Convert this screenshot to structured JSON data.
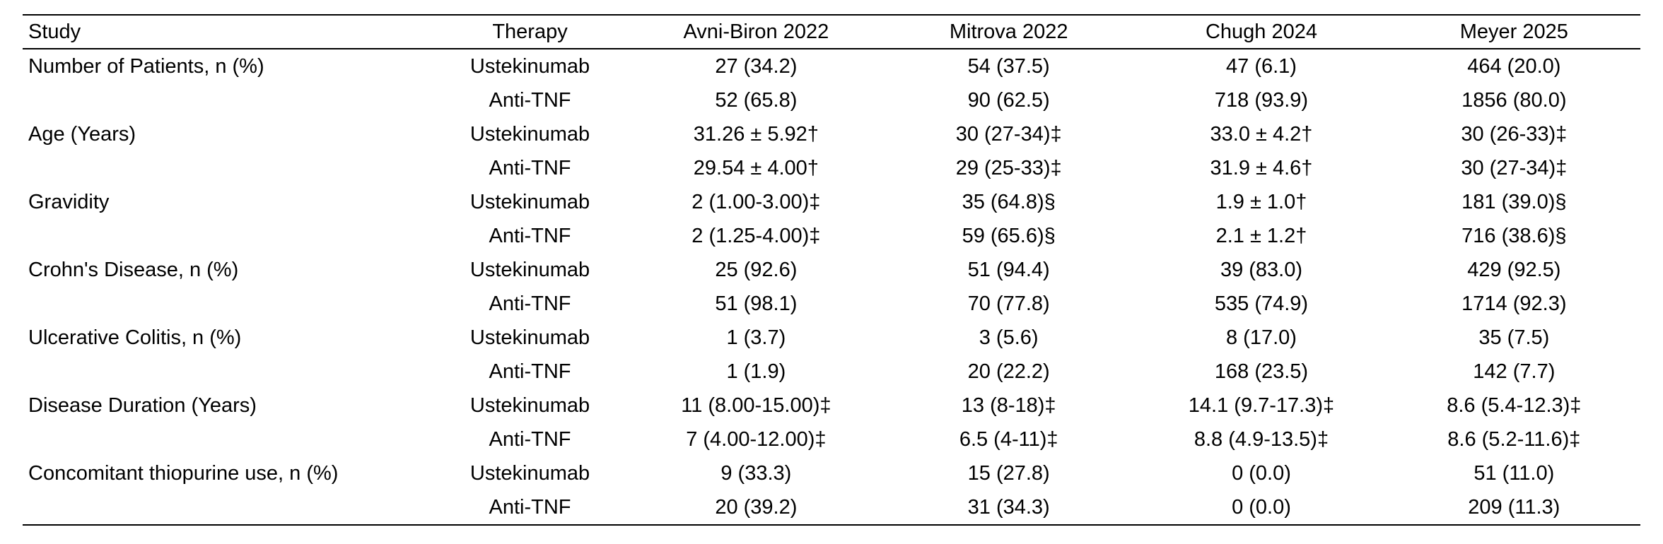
{
  "table": {
    "headers": [
      "Study",
      "Therapy",
      "Avni-Biron 2022",
      "Mitrova 2022",
      "Chugh 2024",
      "Meyer 2025"
    ],
    "rows": [
      {
        "variable": "Number of Patients, n (%)",
        "therapy": "Ustekinumab",
        "values": [
          "27 (34.2)",
          "54 (37.5)",
          "47 (6.1)",
          "464 (20.0)"
        ]
      },
      {
        "variable": "",
        "therapy": "Anti-TNF",
        "values": [
          "52 (65.8)",
          "90 (62.5)",
          "718 (93.9)",
          "1856 (80.0)"
        ]
      },
      {
        "variable": "Age (Years)",
        "therapy": "Ustekinumab",
        "values": [
          "31.26 ± 5.92†",
          "30 (27-34)‡",
          "33.0 ± 4.2†",
          "30 (26-33)‡"
        ]
      },
      {
        "variable": "",
        "therapy": "Anti-TNF",
        "values": [
          "29.54 ± 4.00†",
          "29 (25-33)‡",
          "31.9 ± 4.6†",
          "30 (27-34)‡"
        ]
      },
      {
        "variable": "Gravidity",
        "therapy": "Ustekinumab",
        "values": [
          "2 (1.00-3.00)‡",
          "35 (64.8)§",
          "1.9 ± 1.0†",
          "181 (39.0)§"
        ]
      },
      {
        "variable": "",
        "therapy": "Anti-TNF",
        "values": [
          "2 (1.25-4.00)‡",
          "59 (65.6)§",
          "2.1 ± 1.2†",
          "716 (38.6)§"
        ]
      },
      {
        "variable": "Crohn's Disease, n (%)",
        "therapy": "Ustekinumab",
        "values": [
          "25 (92.6)",
          "51 (94.4)",
          "39 (83.0)",
          "429 (92.5)"
        ]
      },
      {
        "variable": "",
        "therapy": "Anti-TNF",
        "values": [
          "51 (98.1)",
          "70 (77.8)",
          "535 (74.9)",
          "1714 (92.3)"
        ]
      },
      {
        "variable": "Ulcerative Colitis, n (%)",
        "therapy": "Ustekinumab",
        "values": [
          "1 (3.7)",
          "3 (5.6)",
          "8 (17.0)",
          "35 (7.5)"
        ]
      },
      {
        "variable": "",
        "therapy": "Anti-TNF",
        "values": [
          "1 (1.9)",
          "20 (22.2)",
          "168 (23.5)",
          "142 (7.7)"
        ]
      },
      {
        "variable": "Disease Duration (Years)",
        "therapy": "Ustekinumab",
        "values": [
          "11 (8.00-15.00)‡",
          "13 (8-18)‡",
          "14.1 (9.7-17.3)‡",
          "8.6 (5.4-12.3)‡"
        ]
      },
      {
        "variable": "",
        "therapy": "Anti-TNF",
        "values": [
          "7 (4.00-12.00)‡",
          "6.5 (4-11)‡",
          "8.8 (4.9-13.5)‡",
          "8.6 (5.2-11.6)‡"
        ]
      },
      {
        "variable": "Concomitant thiopurine use, n (%)",
        "therapy": "Ustekinumab",
        "values": [
          "9 (33.3)",
          "15 (27.8)",
          "0 (0.0)",
          "51 (11.0)"
        ]
      },
      {
        "variable": "",
        "therapy": "Anti-TNF",
        "values": [
          "20 (39.2)",
          "31 (34.3)",
          "0 (0.0)",
          "209 (11.3)"
        ]
      }
    ]
  },
  "chart_data": {
    "type": "table",
    "columns": [
      "Study",
      "Therapy",
      "Avni-Biron 2022",
      "Mitrova 2022",
      "Chugh 2024",
      "Meyer 2025"
    ],
    "rows": [
      [
        "Number of Patients, n (%)",
        "Ustekinumab",
        "27 (34.2)",
        "54 (37.5)",
        "47 (6.1)",
        "464 (20.0)"
      ],
      [
        "",
        "Anti-TNF",
        "52 (65.8)",
        "90 (62.5)",
        "718 (93.9)",
        "1856 (80.0)"
      ],
      [
        "Age (Years)",
        "Ustekinumab",
        "31.26 ± 5.92†",
        "30 (27-34)‡",
        "33.0 ± 4.2†",
        "30 (26-33)‡"
      ],
      [
        "",
        "Anti-TNF",
        "29.54 ± 4.00†",
        "29 (25-33)‡",
        "31.9 ± 4.6†",
        "30 (27-34)‡"
      ],
      [
        "Gravidity",
        "Ustekinumab",
        "2 (1.00-3.00)‡",
        "35 (64.8)§",
        "1.9 ± 1.0†",
        "181 (39.0)§"
      ],
      [
        "",
        "Anti-TNF",
        "2 (1.25-4.00)‡",
        "59 (65.6)§",
        "2.1 ± 1.2†",
        "716 (38.6)§"
      ],
      [
        "Crohn's Disease, n (%)",
        "Ustekinumab",
        "25 (92.6)",
        "51 (94.4)",
        "39 (83.0)",
        "429 (92.5)"
      ],
      [
        "",
        "Anti-TNF",
        "51 (98.1)",
        "70 (77.8)",
        "535 (74.9)",
        "1714 (92.3)"
      ],
      [
        "Ulcerative Colitis, n (%)",
        "Ustekinumab",
        "1 (3.7)",
        "3 (5.6)",
        "8 (17.0)",
        "35 (7.5)"
      ],
      [
        "",
        "Anti-TNF",
        "1 (1.9)",
        "20 (22.2)",
        "168 (23.5)",
        "142 (7.7)"
      ],
      [
        "Disease Duration (Years)",
        "Ustekinumab",
        "11 (8.00-15.00)‡",
        "13 (8-18)‡",
        "14.1 (9.7-17.3)‡",
        "8.6 (5.4-12.3)‡"
      ],
      [
        "",
        "Anti-TNF",
        "7 (4.00-12.00)‡",
        "6.5 (4-11)‡",
        "8.8 (4.9-13.5)‡",
        "8.6 (5.2-11.6)‡"
      ],
      [
        "Concomitant thiopurine use, n (%)",
        "Ustekinumab",
        "9 (33.3)",
        "15 (27.8)",
        "0 (0.0)",
        "51 (11.0)"
      ],
      [
        "",
        "Anti-TNF",
        "20 (39.2)",
        "31 (34.3)",
        "0 (0.0)",
        "209 (11.3)"
      ]
    ]
  }
}
